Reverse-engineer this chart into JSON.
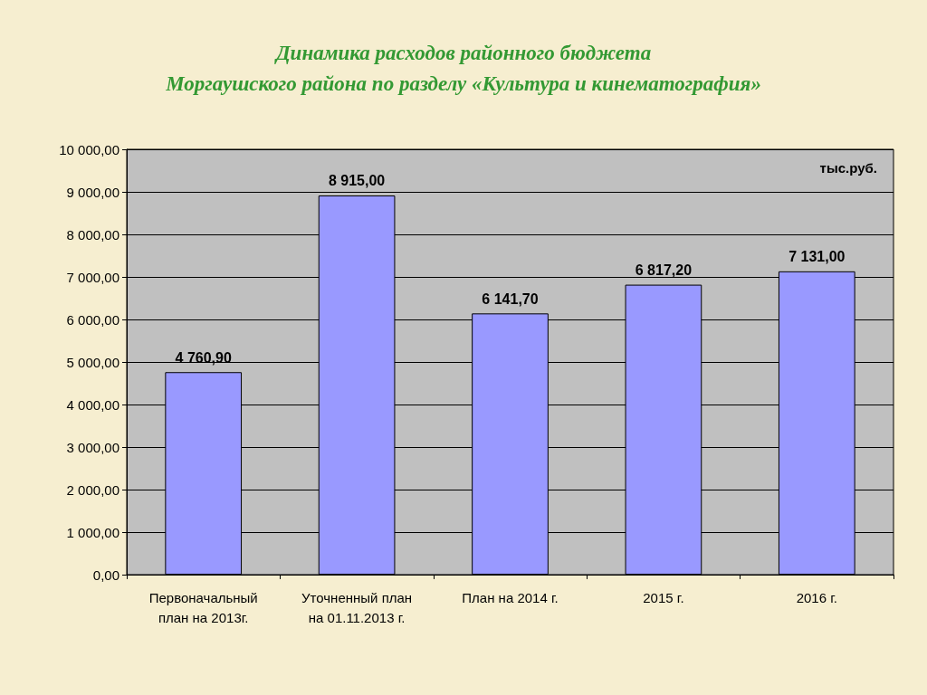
{
  "chart_data": {
    "type": "bar",
    "title": "Динамика расходов районного бюджета\nМоргаушского района по разделу «Культура и кинематография»",
    "categories": [
      "Первоначальный план на 2013г.",
      "Уточненный план на 01.11.2013 г.",
      "План на 2014 г.",
      "2015 г.",
      "2016 г."
    ],
    "values": [
      4760.9,
      8915,
      6141.7,
      6817.2,
      7131
    ],
    "value_labels": [
      "4 760,90",
      "8 915,00",
      "6 141,70",
      "6 817,20",
      "7 131,00"
    ],
    "color": "#9999ff",
    "ylim": [
      0,
      10000
    ],
    "yticks": [
      {
        "value": 0,
        "label": "0,00"
      },
      {
        "value": 1000,
        "label": "1 000,00"
      },
      {
        "value": 2000,
        "label": "2 000,00"
      },
      {
        "value": 3000,
        "label": "3 000,00"
      },
      {
        "value": 4000,
        "label": "4 000,00"
      },
      {
        "value": 5000,
        "label": "5 000,00"
      },
      {
        "value": 6000,
        "label": "6 000,00"
      },
      {
        "value": 7000,
        "label": "7 000,00"
      },
      {
        "value": 8000,
        "label": "8 000,00"
      },
      {
        "value": 9000,
        "label": "9 000,00"
      },
      {
        "value": 10000,
        "label": "10 000,00"
      }
    ],
    "grid": "y",
    "annotations": [
      "тыс.руб."
    ]
  }
}
